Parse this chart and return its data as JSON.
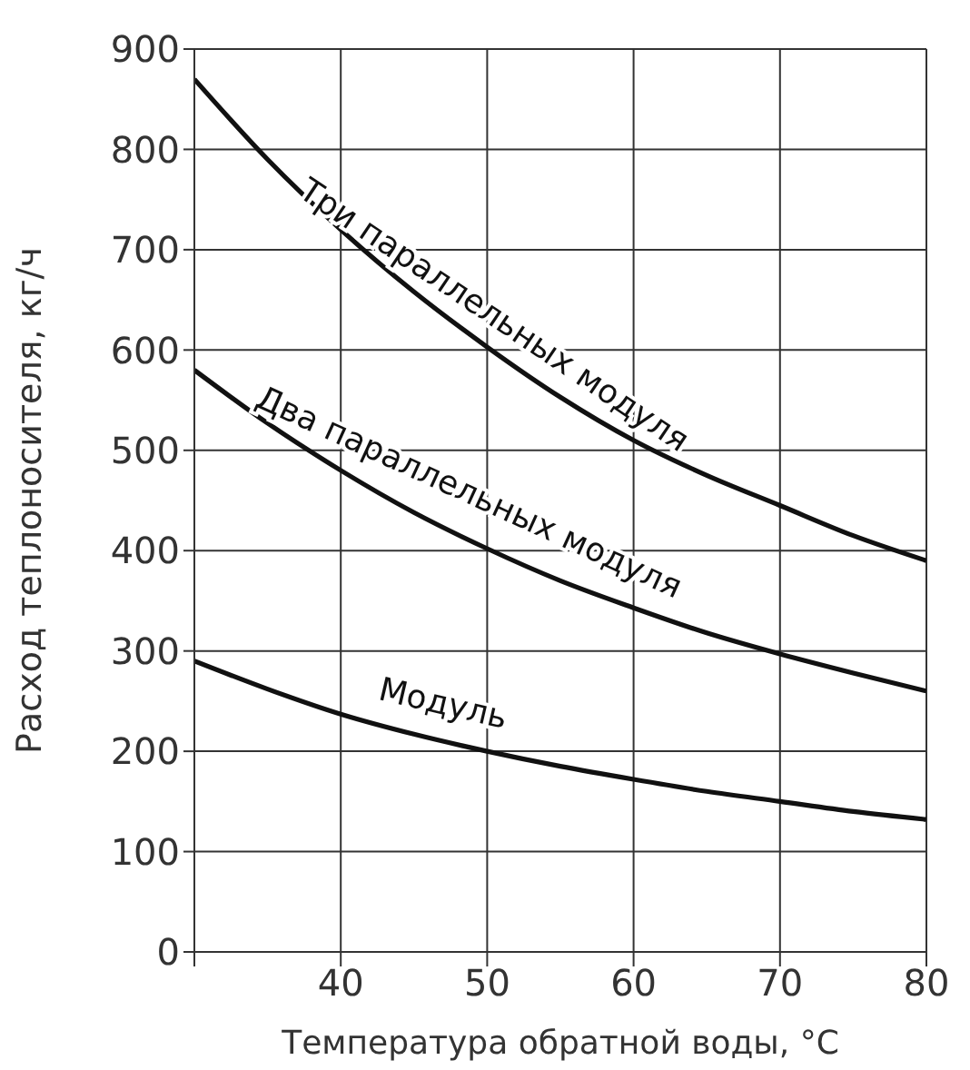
{
  "chart_data": {
    "type": "line",
    "xlabel": "Температура обратной воды, °C",
    "ylabel": "Расход теплоносителя, кг/ч",
    "x": [
      30,
      35,
      40,
      45,
      50,
      55,
      60,
      65,
      70,
      75,
      80
    ],
    "xlim": [
      30,
      80
    ],
    "xticks": [
      {
        "value": 30,
        "label": null
      },
      40,
      50,
      60,
      70,
      80
    ],
    "ylim": [
      0,
      900
    ],
    "yticks": [
      0,
      100,
      200,
      300,
      400,
      500,
      600,
      700,
      800,
      900
    ],
    "grid": true,
    "legend": false,
    "marker": "none",
    "line_style": "solid",
    "series": [
      {
        "name": "Три параллельных модуля",
        "color": "#111111",
        "values": [
          870,
          790,
          720,
          658,
          603,
          553,
          510,
          475,
          445,
          415,
          390
        ]
      },
      {
        "name": "Два параллельных модуля",
        "color": "#111111",
        "values": [
          580,
          527,
          480,
          438,
          402,
          370,
          343,
          318,
          297,
          278,
          260
        ]
      },
      {
        "name": "Модуль",
        "color": "#111111",
        "values": [
          290,
          262,
          237,
          217,
          200,
          185,
          172,
          160,
          150,
          140,
          132
        ]
      }
    ]
  }
}
